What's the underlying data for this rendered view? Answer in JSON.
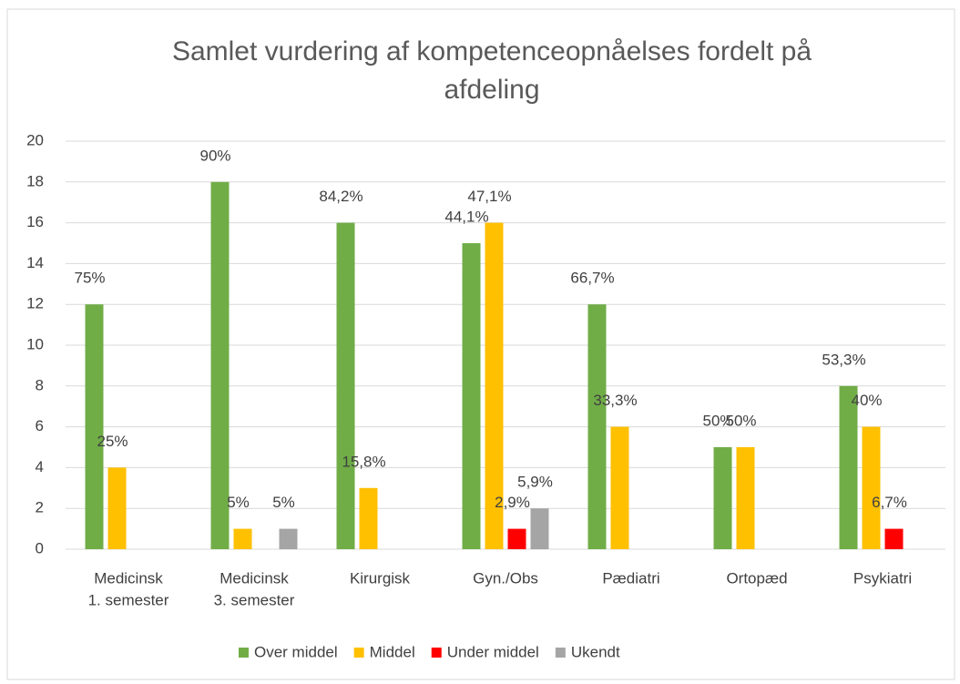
{
  "chart_data": {
    "type": "bar",
    "title": [
      "Samlet vurdering af kompetenceopnåelses fordelt på",
      "afdeling"
    ],
    "categories": [
      [
        "Medicinsk",
        "1. semester"
      ],
      [
        "Medicinsk",
        "3. semester"
      ],
      [
        "Kirurgisk"
      ],
      [
        "Gyn./Obs"
      ],
      [
        "Pædiatri"
      ],
      [
        "Ortopæd"
      ],
      [
        "Psykiatri"
      ]
    ],
    "series": [
      {
        "name": "Over middel",
        "color": "#70ad47",
        "values": [
          12,
          18,
          16,
          15,
          12,
          5,
          8
        ],
        "data_labels": [
          "75%",
          "90%",
          "84,2%",
          "44,1%",
          "66,7%",
          "50%",
          "53,3%"
        ]
      },
      {
        "name": "Middel",
        "color": "#ffc000",
        "values": [
          4,
          1,
          3,
          16,
          6,
          5,
          6
        ],
        "data_labels": [
          "25%",
          "5%",
          "15,8%",
          "47,1%",
          "33,3%",
          "50%",
          "40%"
        ]
      },
      {
        "name": "Under middel",
        "color": "#ff0000",
        "values": [
          null,
          null,
          null,
          1,
          null,
          null,
          1
        ],
        "data_labels": [
          null,
          null,
          null,
          "2,9%",
          null,
          null,
          "6,7%"
        ]
      },
      {
        "name": "Ukendt",
        "color": "#a5a5a5",
        "values": [
          null,
          1,
          null,
          2,
          null,
          null,
          null
        ],
        "data_labels": [
          null,
          "5%",
          null,
          "5,9%",
          null,
          null,
          null
        ]
      }
    ],
    "ylim": [
      0,
      20
    ],
    "yticks": [
      0,
      2,
      4,
      6,
      8,
      10,
      12,
      14,
      16,
      18,
      20
    ],
    "grid": true,
    "legend": "bottom"
  }
}
